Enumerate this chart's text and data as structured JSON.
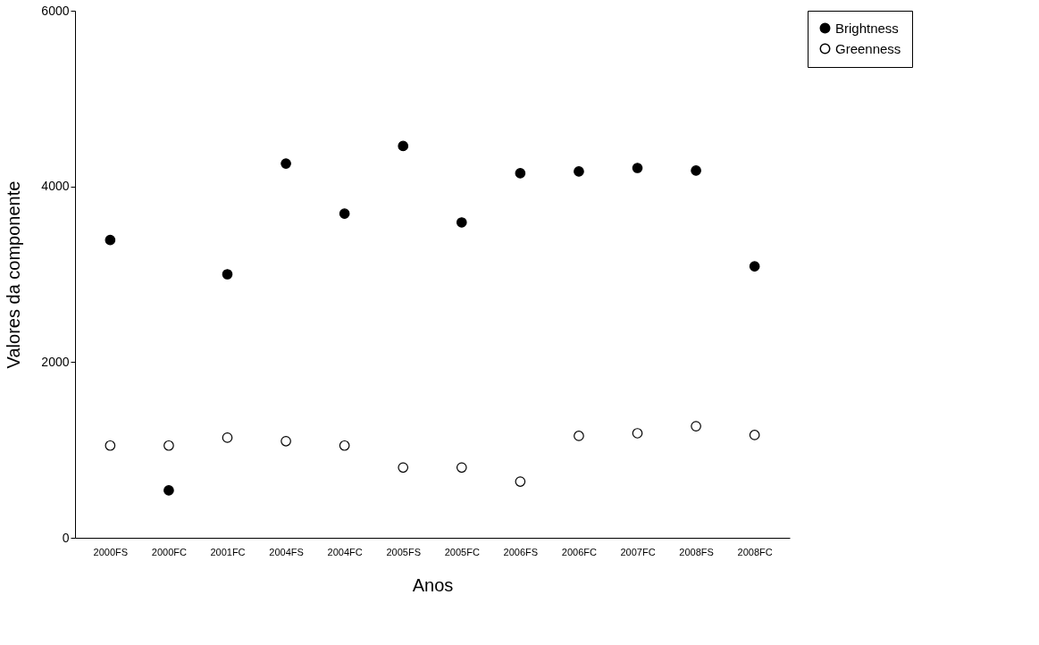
{
  "chart_data": {
    "type": "scatter",
    "xlabel": "Anos",
    "ylabel": "Valores da componente",
    "categories": [
      "2000FS",
      "2000FC",
      "2001FC",
      "2004FS",
      "2004FC",
      "2005FS",
      "2005FC",
      "2006FS",
      "2006FC",
      "2007FC",
      "2008FS",
      "2008FC"
    ],
    "series": [
      {
        "name": "Brightness",
        "color": "#000000",
        "values": [
          3390,
          540,
          3000,
          4260,
          3690,
          4460,
          3590,
          4150,
          4170,
          4210,
          4180,
          3090
        ]
      },
      {
        "name": "Greenness",
        "color": "#ffffff",
        "values": [
          1050,
          1050,
          1140,
          1100,
          1050,
          800,
          800,
          640,
          1160,
          1190,
          1270,
          1170
        ]
      }
    ],
    "ylim": [
      0,
      6000
    ],
    "yticks": [
      0,
      2000,
      4000,
      6000
    ],
    "grid": false,
    "legend": "right",
    "marker": "circle"
  }
}
